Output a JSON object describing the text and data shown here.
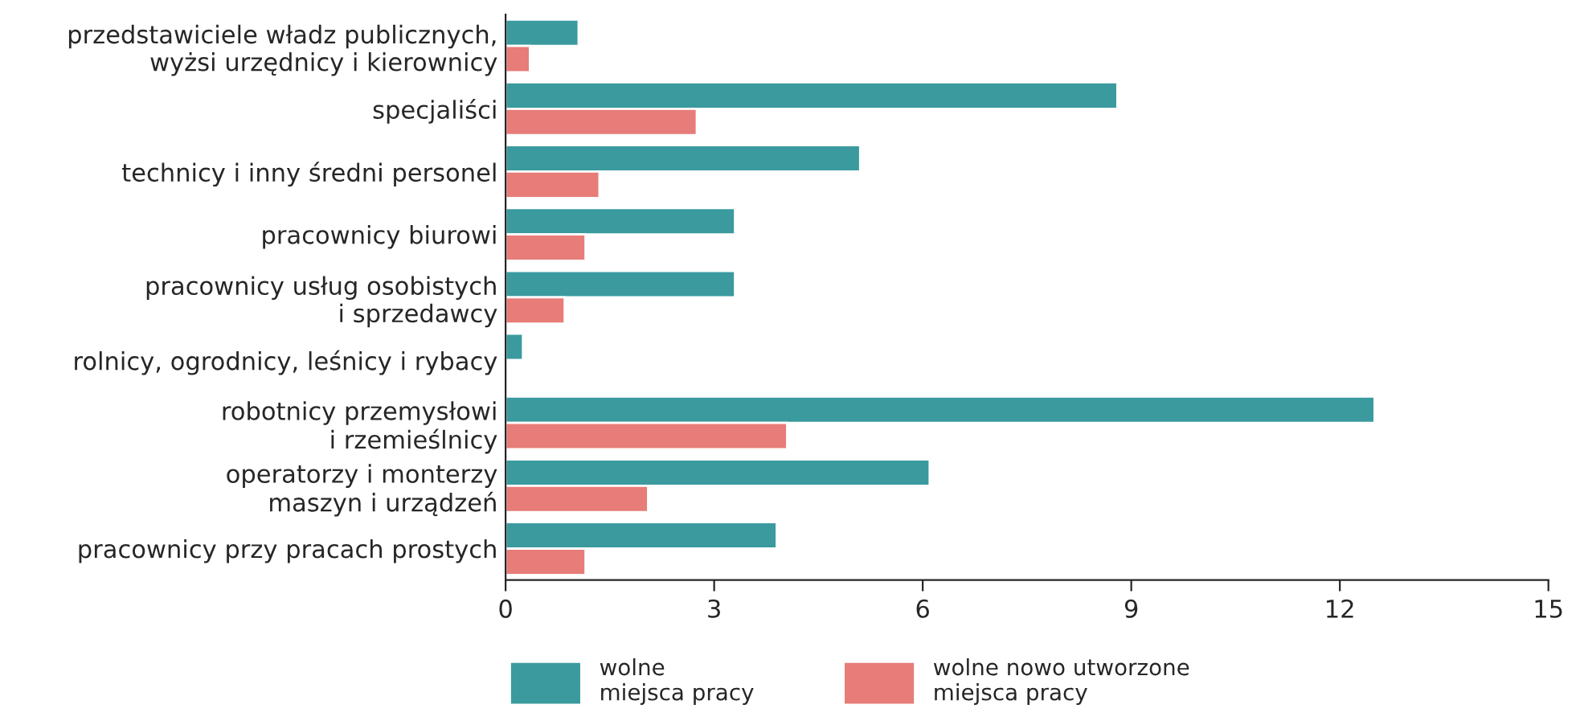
{
  "chart_data": {
    "type": "bar",
    "orientation": "horizontal",
    "categories": [
      "przedstawiciele władz publicznych,\nwyżsi urzędnicy i kierownicy",
      "specjaliści",
      "technicy i inny średni personel",
      "pracownicy biurowi",
      "pracownicy usług osobistych\ni sprzedawcy",
      "rolnicy, ogrodnicy, leśnicy i rybacy",
      "robotnicy przemysłowi\ni rzemieślnicy",
      "operatorzy i monterzy\nmaszyn i urządzeń",
      "pracownicy przy pracach prostych"
    ],
    "series": [
      {
        "name": "wolne\nmiejsca pracy",
        "color": "#3a9a9e",
        "values": [
          1.05,
          8.8,
          5.1,
          3.3,
          3.3,
          0.25,
          12.5,
          6.1,
          3.9
        ]
      },
      {
        "name": "wolne nowo utworzone\nmiejsca pracy",
        "color": "#e77c78",
        "values": [
          0.35,
          2.75,
          1.35,
          1.15,
          0.85,
          null,
          4.05,
          2.05,
          1.15
        ]
      }
    ],
    "xlim": [
      0,
      15
    ],
    "xticks": [
      0,
      3,
      6,
      9,
      12,
      15
    ],
    "grid": false,
    "legend": "bottom left"
  }
}
